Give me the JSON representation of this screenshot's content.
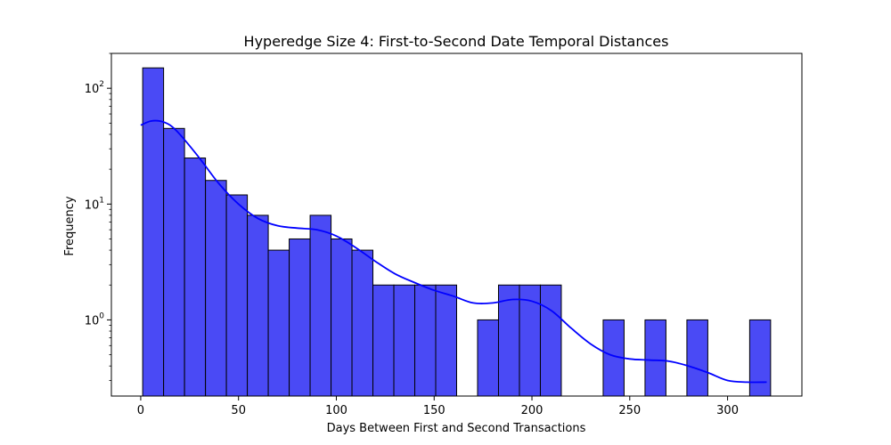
{
  "chart_data": {
    "type": "bar",
    "subtype": "histogram",
    "title": "Hyperedge Size 4: First-to-Second Date Temporal Distances",
    "xlabel": "Days Between First and Second Transactions",
    "ylabel": "Frequency",
    "xlim": [
      -15,
      338
    ],
    "ylim": [
      0.22,
      200
    ],
    "yscale": "log",
    "x_ticks": [
      0,
      50,
      100,
      150,
      200,
      250,
      300
    ],
    "x_tick_labels": [
      "0",
      "50",
      "100",
      "150",
      "200",
      "250",
      "300"
    ],
    "y_ticks": [
      {
        "value": 1,
        "base": "10",
        "exp": "0"
      },
      {
        "value": 10,
        "base": "10",
        "exp": "1"
      },
      {
        "value": 100,
        "base": "10",
        "exp": "2"
      }
    ],
    "bins": [
      {
        "x0": 1,
        "x1": 11.7,
        "count": 150
      },
      {
        "x0": 11.7,
        "x1": 22.4,
        "count": 45
      },
      {
        "x0": 22.4,
        "x1": 33.1,
        "count": 25
      },
      {
        "x0": 33.1,
        "x1": 43.8,
        "count": 16
      },
      {
        "x0": 43.8,
        "x1": 54.5,
        "count": 12
      },
      {
        "x0": 54.5,
        "x1": 65.2,
        "count": 8
      },
      {
        "x0": 65.2,
        "x1": 75.9,
        "count": 4
      },
      {
        "x0": 75.9,
        "x1": 86.6,
        "count": 5
      },
      {
        "x0": 86.6,
        "x1": 97.3,
        "count": 8
      },
      {
        "x0": 97.3,
        "x1": 108.0,
        "count": 5
      },
      {
        "x0": 108.0,
        "x1": 118.7,
        "count": 4
      },
      {
        "x0": 118.7,
        "x1": 129.4,
        "count": 2
      },
      {
        "x0": 129.4,
        "x1": 140.1,
        "count": 2
      },
      {
        "x0": 140.1,
        "x1": 150.8,
        "count": 2
      },
      {
        "x0": 150.8,
        "x1": 161.5,
        "count": 2
      },
      {
        "x0": 172.2,
        "x1": 182.9,
        "count": 1
      },
      {
        "x0": 182.9,
        "x1": 193.6,
        "count": 2
      },
      {
        "x0": 193.6,
        "x1": 204.3,
        "count": 2
      },
      {
        "x0": 204.3,
        "x1": 215.0,
        "count": 2
      },
      {
        "x0": 236.4,
        "x1": 247.1,
        "count": 1
      },
      {
        "x0": 257.8,
        "x1": 268.5,
        "count": 1
      },
      {
        "x0": 279.2,
        "x1": 289.9,
        "count": 1
      },
      {
        "x0": 311.3,
        "x1": 322.0,
        "count": 1
      }
    ],
    "kde": {
      "x": [
        0,
        5,
        10,
        15,
        20,
        30,
        40,
        50,
        60,
        70,
        80,
        90,
        100,
        110,
        120,
        130,
        140,
        150,
        160,
        170,
        180,
        190,
        200,
        210,
        220,
        230,
        240,
        250,
        260,
        270,
        280,
        290,
        300,
        310,
        320
      ],
      "y": [
        48,
        52,
        52,
        48,
        40,
        25,
        15,
        10,
        7.5,
        6.5,
        6.2,
        6.0,
        5.3,
        4.2,
        3.2,
        2.5,
        2.1,
        1.8,
        1.6,
        1.4,
        1.4,
        1.5,
        1.45,
        1.2,
        0.85,
        0.62,
        0.5,
        0.46,
        0.45,
        0.44,
        0.4,
        0.35,
        0.3,
        0.29,
        0.29
      ]
    },
    "grid": false,
    "colors": {
      "bar_fill": "#4a4af5",
      "bar_edge": "#000000",
      "kde_line": "#0000ff"
    }
  }
}
